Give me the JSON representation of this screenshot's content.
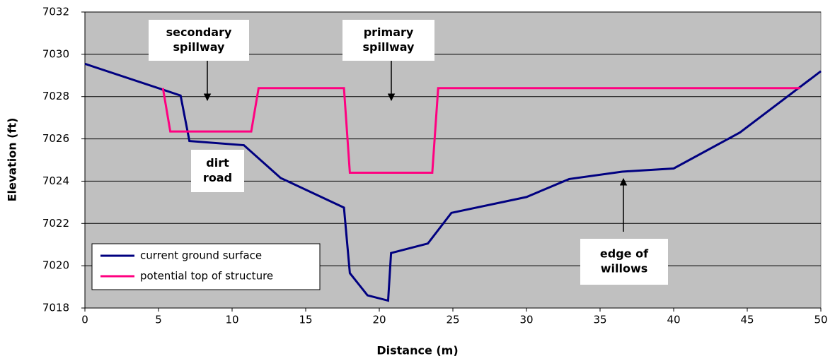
{
  "chart_data": {
    "type": "line",
    "xlabel": "Distance (m)",
    "ylabel": "Elevation (ft)",
    "xlim": [
      0,
      50
    ],
    "xticks": [
      0,
      5,
      10,
      15,
      20,
      25,
      30,
      35,
      40,
      45,
      50
    ],
    "ylim": [
      7018,
      7032
    ],
    "yticks": [
      7018,
      7020,
      7022,
      7024,
      7026,
      7028,
      7030,
      7032
    ],
    "grid": true,
    "legend": "lower left",
    "series": [
      {
        "name": "current ground surface",
        "color": "#000080",
        "x": [
          0,
          6.5,
          7.1,
          10.8,
          13.3,
          17.6,
          18.0,
          19.2,
          20.6,
          20.8,
          23.3,
          24.9,
          30.0,
          32.9,
          36.5,
          40.0,
          44.5,
          50
        ],
        "values": [
          7029.55,
          7028.05,
          7025.9,
          7025.7,
          7024.15,
          7022.75,
          7019.65,
          7018.6,
          7018.35,
          7020.6,
          7021.05,
          7022.5,
          7023.25,
          7024.1,
          7024.45,
          7024.6,
          7026.3,
          7029.2
        ]
      },
      {
        "name": "potential top of structure",
        "color": "#ff0080",
        "x": [
          5.3,
          5.8,
          11.3,
          11.8,
          17.6,
          18.0,
          23.6,
          24.0,
          48.6
        ],
        "values": [
          7028.4,
          7026.35,
          7026.35,
          7028.4,
          7028.4,
          7024.4,
          7024.4,
          7028.4,
          7028.4
        ]
      }
    ],
    "annotations": [
      [
        "secondary",
        "spillway"
      ],
      [
        "primary",
        "spillway"
      ],
      [
        "dirt",
        "road"
      ],
      [
        "edge of",
        "willows"
      ]
    ]
  }
}
